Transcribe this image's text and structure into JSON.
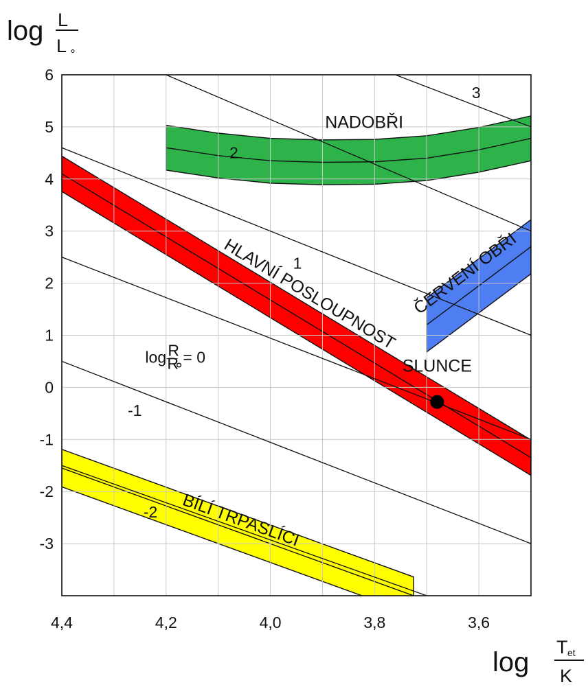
{
  "chart_data": {
    "type": "line",
    "title": "",
    "x_axis": {
      "label_prefix": "log",
      "label_numerator": "T",
      "label_numerator_sub": "et",
      "label_denominator": "K",
      "range": [
        4.4,
        3.5
      ],
      "reversed": true,
      "ticks": [
        4.4,
        4.3,
        4.2,
        4.1,
        4.0,
        3.9,
        3.8,
        3.7,
        3.6,
        3.5
      ],
      "tick_labels": [
        {
          "value": 4.4,
          "text": "4,4"
        },
        {
          "value": 4.2,
          "text": "4,2"
        },
        {
          "value": 4.0,
          "text": "4,0"
        },
        {
          "value": 3.8,
          "text": "3,8"
        },
        {
          "value": 3.6,
          "text": "3,6"
        }
      ]
    },
    "y_axis": {
      "label_prefix": "log",
      "label_numerator": "L",
      "label_denominator": "L",
      "label_denominator_sub": "∘",
      "range": [
        -4,
        6
      ],
      "ticks": [
        -4,
        -3,
        -2,
        -1,
        0,
        1,
        2,
        3,
        4,
        5,
        6
      ],
      "tick_labels": [
        {
          "value": 6,
          "text": "6"
        },
        {
          "value": 5,
          "text": "5"
        },
        {
          "value": 4,
          "text": "4"
        },
        {
          "value": 3,
          "text": "3"
        },
        {
          "value": 2,
          "text": "2"
        },
        {
          "value": 1,
          "text": "1"
        },
        {
          "value": 0,
          "text": "0"
        },
        {
          "value": -1,
          "text": "-1"
        },
        {
          "value": -2,
          "text": "-2"
        },
        {
          "value": -3,
          "text": "-3"
        }
      ]
    },
    "grid": true,
    "radius_lines": [
      {
        "label": "3",
        "points": [
          [
            4.2,
            6.0
          ],
          [
            3.5,
            3.0
          ]
        ]
      },
      {
        "label": "2",
        "points": [
          [
            4.4,
            4.6
          ],
          [
            3.5,
            1.0
          ]
        ]
      },
      {
        "label": "1",
        "points": [
          [
            4.4,
            2.5
          ],
          [
            3.5,
            -1.0
          ]
        ]
      },
      {
        "label": "0",
        "points": [
          [
            4.4,
            0.5
          ],
          [
            3.5,
            -3.0
          ]
        ]
      },
      {
        "label": "-1",
        "points": [
          [
            4.4,
            -1.5
          ],
          [
            3.7,
            -4.0
          ]
        ]
      },
      {
        "label": "3b",
        "points": [
          [
            3.76,
            6.0
          ],
          [
            3.5,
            5.0
          ]
        ]
      }
    ],
    "radius_labels": [
      {
        "text": "3",
        "x": 3.605,
        "y": 5.55
      },
      {
        "text": "2",
        "x": 4.07,
        "y": 4.4
      },
      {
        "text": "1",
        "x": 3.948,
        "y": 2.28
      },
      {
        "text": "-1",
        "x": 4.26,
        "y": -0.55
      },
      {
        "text": "-2",
        "x": 4.23,
        "y": -2.5
      }
    ],
    "radius_zero_label": {
      "prefix": "log",
      "numerator": "R",
      "denominator": "R",
      "denominator_sub": "∘",
      "suffix": "= 0",
      "x": 4.24,
      "y": 0.55
    },
    "regions": [
      {
        "name": "HLAVNÍ POSLOUPNOST",
        "color": "#ff0000",
        "center_line": [
          [
            4.4,
            4.1
          ],
          [
            3.5,
            -1.35
          ]
        ],
        "half_width": 0.34,
        "label_x": 3.93,
        "label_y": 1.7
      },
      {
        "name": "NADOBŘI",
        "color": "#2db34a",
        "center": [
          [
            4.2,
            4.6
          ],
          [
            4.1,
            4.45
          ],
          [
            4.0,
            4.35
          ],
          [
            3.9,
            4.32
          ],
          [
            3.8,
            4.33
          ],
          [
            3.7,
            4.4
          ],
          [
            3.6,
            4.56
          ],
          [
            3.5,
            4.78
          ]
        ],
        "half_width": 0.43,
        "label_x": 3.82,
        "label_y": 4.98
      },
      {
        "name": "ČERVENÍ OBŘI",
        "color": "#4f7df2",
        "center_line": [
          [
            3.7,
            1.2
          ],
          [
            3.5,
            2.7
          ]
        ],
        "half_width": 0.52,
        "label_x": 3.62,
        "label_y": 2.1
      },
      {
        "name": "BÍLÍ TRPASLÍCI",
        "color": "#ffff00",
        "center_line": [
          [
            4.4,
            -1.55
          ],
          [
            3.725,
            -4.0
          ]
        ],
        "half_width": 0.36,
        "label_x": 4.06,
        "label_y": -2.65
      }
    ],
    "sun": {
      "label": "SLUNCE",
      "x": 3.68,
      "y": -0.28,
      "label_x": 3.68,
      "label_y": 0.3
    }
  }
}
